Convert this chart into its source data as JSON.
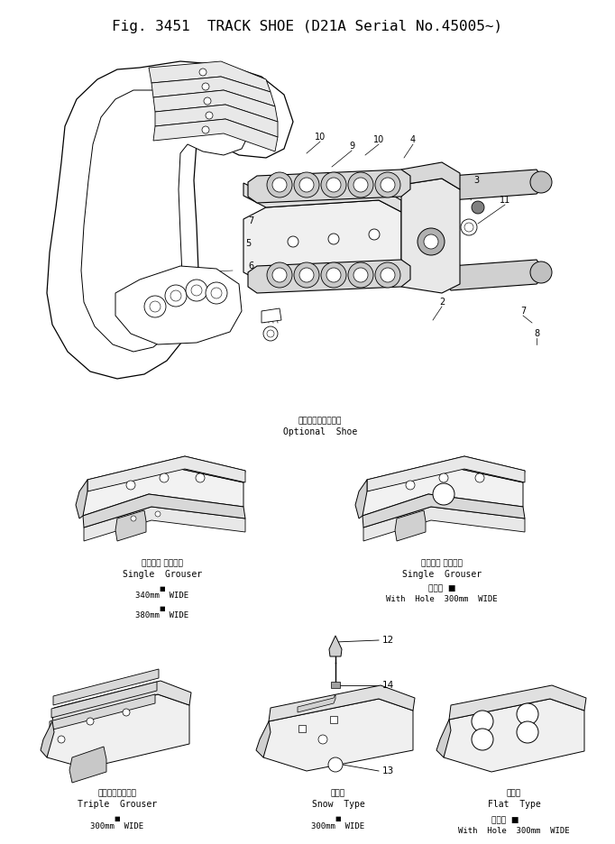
{
  "title": "Fig. 3451  TRACK SHOE (D21A Serial No.45005~)",
  "bg_color": "#ffffff",
  "title_fontsize": 11.5,
  "optional_shoe_jp": "オプショナルシュー",
  "optional_shoe_en": "Optional  Shoe",
  "sg_left_jp": "シングル グローサ",
  "sg_left_en": "Single  Grouser",
  "sg_left_line1": "340mm  WIDE",
  "sg_left_line2": "380mm  WIDE",
  "sg_right_jp": "シングル グローサ",
  "sg_right_en": "Single  Grouser",
  "sg_right_hole_jp": "穴あき",
  "sg_right_hole_en": "With  Hole  300mm  WIDE",
  "triple_jp": "トリプルグローサ",
  "triple_en": "Triple  Grouser",
  "triple_wide": "300mm  WIDE",
  "snow_jp": "雪上用",
  "snow_en": "Snow  Type",
  "snow_wide": "300mm  WIDE",
  "flat_jp": "平滑用",
  "flat_en": "Flat  Type",
  "flat_hole_jp": "穴あき",
  "flat_wide": "With  Hole  300mm  WIDE"
}
